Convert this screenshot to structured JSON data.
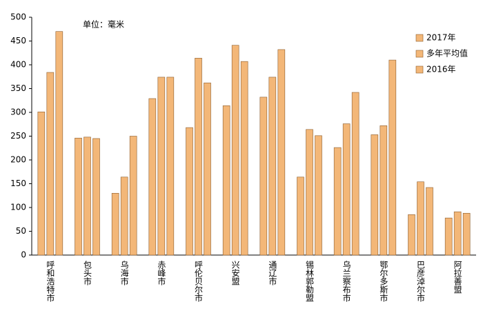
{
  "chart_data": {
    "type": "bar",
    "annotation": "单位：毫米",
    "categories": [
      "呼和浩特市",
      "包头市",
      "乌海市",
      "赤峰市",
      "呼伦贝尔市",
      "兴安盟",
      "通辽市",
      "锡林郭勒盟",
      "乌兰察布市",
      "鄂尔多斯市",
      "巴彦淖尔市",
      "阿拉善盟"
    ],
    "series": [
      {
        "name": "2017年",
        "color": "#f3b778",
        "values": [
          301,
          246,
          130,
          329,
          268,
          314,
          332,
          164,
          226,
          253,
          85,
          78
        ]
      },
      {
        "name": "多年平均值",
        "color": "#f3b778",
        "values": [
          384,
          248,
          164,
          374,
          414,
          441,
          374,
          264,
          276,
          272,
          154,
          91
        ]
      },
      {
        "name": "2016年",
        "color": "#f3b778",
        "values": [
          470,
          245,
          250,
          374,
          362,
          407,
          432,
          251,
          342,
          410,
          142,
          88
        ]
      }
    ],
    "ylim": [
      0,
      500
    ],
    "yticks": [
      0,
      50,
      100,
      150,
      200,
      250,
      300,
      350,
      400,
      450,
      500
    ],
    "grid": false,
    "legend": "top-right"
  }
}
